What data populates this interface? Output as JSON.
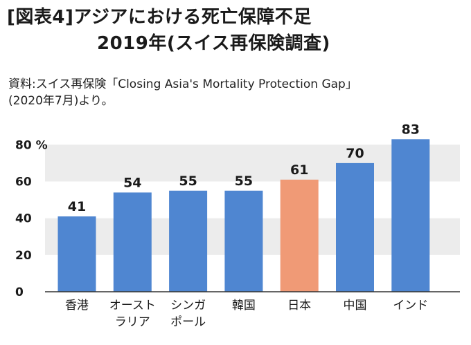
{
  "header": {
    "title_line1": "[図表4]アジアにおける死亡保障不足",
    "title_line2": "2019年(スイス再保険調査)",
    "source_line1": "資料:スイス再保険「Closing Asia's Mortality Protection Gap」",
    "source_line2": "(2020年7月)より。"
  },
  "colors": {
    "bar": "#4f86d1",
    "highlight": "#f09a76",
    "band": "#ececec",
    "axis": "#333333"
  },
  "chart_data": {
    "type": "bar",
    "categories": [
      [
        "香港"
      ],
      [
        "オースト",
        "ラリア"
      ],
      [
        "シンガ",
        "ポール"
      ],
      [
        "韓国"
      ],
      [
        "日本"
      ],
      [
        "中国"
      ],
      [
        "インド"
      ]
    ],
    "values": [
      41,
      54,
      55,
      55,
      61,
      70,
      83
    ],
    "highlight_index": 4,
    "y_ticks": [
      "0",
      "20",
      "40",
      "60",
      "80 %"
    ],
    "ylim": [
      0,
      85
    ],
    "grid": "alternating horizontal bands",
    "title": "",
    "xlabel": "",
    "ylabel": ""
  }
}
